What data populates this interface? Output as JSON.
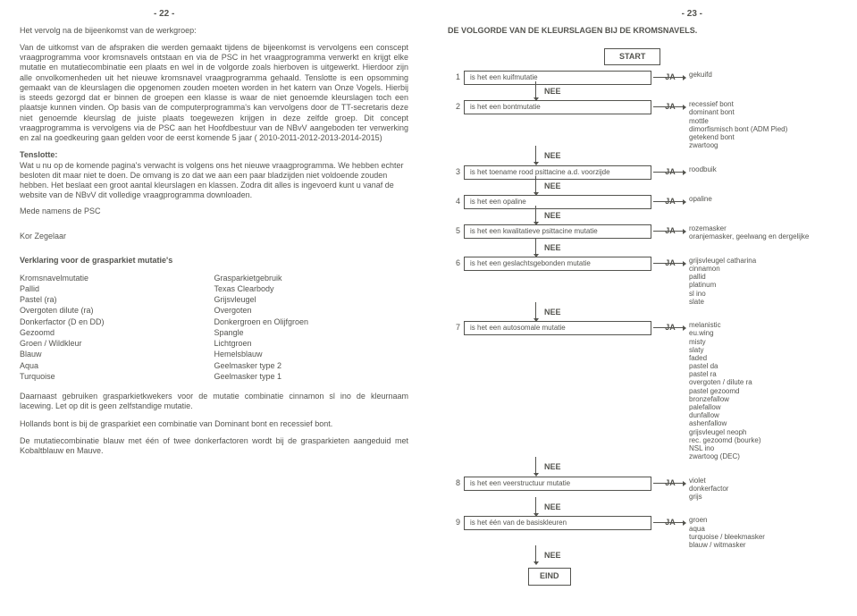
{
  "left": {
    "pageNum": "- 22 -",
    "p1": "Het vervolg na de bijeenkomst van de werkgroep:",
    "p2": "Van de uitkomst van de afspraken die werden gemaakt tijdens de bijeenkomst is vervolgens een conscept vraagprogramma voor kromsnavels ontstaan en via de PSC in het vraagprogramma verwerkt en krijgt elke mutatie en mutatiecombinatie een plaats en wel in de volgorde zoals hierboven is uitgewerkt. Hierdoor zijn alle onvolkomenheden uit het nieuwe kromsnavel vraagprogramma gehaald. Tenslotte is een opsomming gemaakt van de kleurslagen die opgenomen zouden moeten worden in het katern van Onze Vogels.  Hierbij is steeds gezorgd dat er binnen de groepen een klasse is waar de niet genoemde kleurslagen toch een plaatsje kunnen vinden. Op basis van de computerprogramma's kan vervolgens door de TT-secretaris deze niet genoemde kleurslag de juiste plaats toegewezen krijgen in deze zelfde groep. Dit concept vraagprogramma is vervolgens via de PSC aan het Hoofdbestuur van de NBvV aangeboden ter verwerking en zal na goedkeuring gaan gelden voor de eerst komende 5 jaar ( 2010-2011-2012-2013-2014-2015)",
    "p3t": "Tenslotte:",
    "p3": "Wat u nu op de komende pagina's verwacht is volgens ons het nieuwe vraagprogramma. We hebben echter besloten dit maar niet te doen. De omvang is zo dat we aan een paar bladzijden niet voldoende zouden hebben. Het beslaat een groot aantal kleurslagen en klassen. Zodra dit alles is ingevoerd kunt u vanaf de website van de NBvV dit volledige vraagprogramma downloaden.",
    "sig1": "Mede namens de PSC",
    "sig2": "Kor Zegelaar",
    "glossaryTitle": "Verklaring voor de grasparkiet mutatie's",
    "glossaryLeft": [
      "Kromsnavelmutatie",
      "Pallid",
      "Pastel (ra)",
      "Overgoten dilute (ra)",
      "Donkerfactor (D en DD)",
      "Gezoomd",
      "Groen / Wildkleur",
      "Blauw",
      "Aqua",
      "Turquoise"
    ],
    "glossaryRight": [
      "Grasparkietgebruik",
      "Texas Clearbody",
      "Grijsvleugel",
      "Overgoten",
      "Donkergroen en Olijfgroen",
      "Spangle",
      "Lichtgroen",
      "Hemelsblauw",
      "Geelmasker type 2",
      "Geelmasker type 1"
    ],
    "p4": "Daarnaast gebruiken grasparkietkwekers voor de mutatie combinatie cinnamon sl ino de kleurnaam lacewing. Let op dit is geen zelfstandige mutatie.",
    "p5": "Hollands bont is bij de grasparkiet een combinatie van Dominant bont en recessief bont.",
    "p6": "De mutatiecombinatie blauw met één of twee donkerfactoren wordt bij de grasparkieten aangeduid met Kobaltblauw en Mauve."
  },
  "right": {
    "pageNum": "- 23 -",
    "title": "DE VOLGORDE VAN DE KLEURSLAGEN BIJ DE KROMSNAVELS.",
    "start": "START",
    "ja": "JA",
    "nee": "NEE",
    "eind": "EIND",
    "steps": [
      {
        "n": "1",
        "q": "is het een kuifmutatie",
        "r": [
          "gekuifd"
        ]
      },
      {
        "n": "2",
        "q": "is het een bontmutatie",
        "r": [
          "recessief bont",
          "dominant bont",
          "mottle",
          "dimorfismisch bont (ADM Pied)",
          "getekend bont",
          "zwartoog"
        ]
      },
      {
        "n": "3",
        "q": "is het toename rood psittacine a.d. voorzijde",
        "r": [
          "roodbuik"
        ]
      },
      {
        "n": "4",
        "q": "is het een opaline",
        "r": [
          "opaline"
        ]
      },
      {
        "n": "5",
        "q": "is het een kwalitatieve psittacine mutatie",
        "r": [
          "rozemasker",
          "oranjemasker, geelwang en dergelijke"
        ]
      },
      {
        "n": "6",
        "q": "is het een geslachtsgebonden mutatie",
        "r": [
          "grijsvleugel catharina",
          "cinnamon",
          "pallid",
          "platinum",
          "sl ino",
          "slate"
        ]
      },
      {
        "n": "7",
        "q": "is het een autosomale mutatie",
        "r": [
          "melanistic",
          "eu.wing",
          "misty",
          "slaty",
          "faded",
          "pastel da",
          "pastel ra",
          "overgoten / dilute ra",
          "pastel gezoomd",
          "bronzefallow",
          "palefallow",
          "dunfallow",
          "ashenfallow",
          "grijsvleugel neoph",
          "rec. gezoomd (bourke)",
          "NSL ino",
          "zwartoog (DEC)"
        ]
      },
      {
        "n": "8",
        "q": "is het een veerstructuur mutatie",
        "r": [
          "violet",
          "donkerfactor",
          "grijs"
        ]
      },
      {
        "n": "9",
        "q": "is het één van de basiskleuren",
        "r": [
          "groen",
          "aqua",
          "turquoise / bleekmasker",
          "blauw / witmasker"
        ]
      }
    ]
  }
}
